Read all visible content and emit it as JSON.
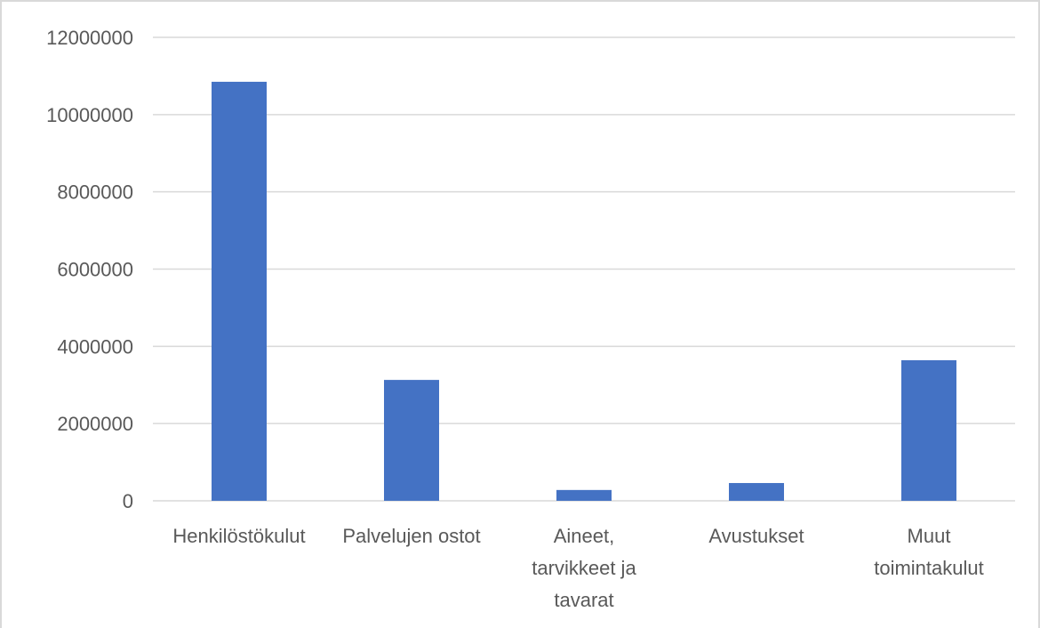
{
  "chart_data": {
    "type": "bar",
    "title": "",
    "xlabel": "",
    "ylabel": "",
    "categories": [
      [
        "Henkilöstökulut"
      ],
      [
        "Palvelujen ostot"
      ],
      [
        "Aineet,",
        "tarvikkeet ja",
        "tavarat"
      ],
      [
        "Avustukset"
      ],
      [
        "Muut",
        "toimintakulut"
      ]
    ],
    "values": [
      10850000,
      3130000,
      280000,
      460000,
      3640000
    ],
    "ylim": [
      0,
      12000000
    ],
    "yticks": [
      0,
      2000000,
      4000000,
      6000000,
      8000000,
      10000000,
      12000000
    ],
    "ytick_labels": [
      "0",
      "2000000",
      "4000000",
      "6000000",
      "8000000",
      "10000000",
      "12000000"
    ],
    "grid": true,
    "legend": "none",
    "bar_color": "#4472c4"
  }
}
